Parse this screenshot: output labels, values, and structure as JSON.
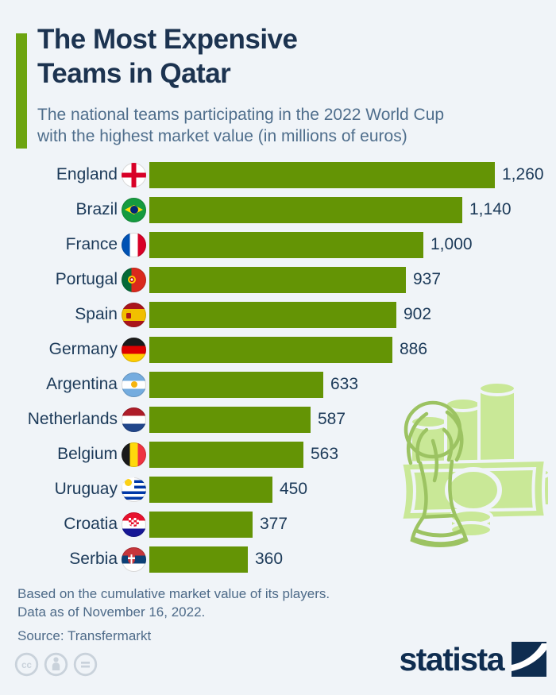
{
  "header": {
    "title": "The Most Expensive Teams in Qatar",
    "title_lines": [
      "The Most Expensive",
      "Teams in Qatar"
    ],
    "subtitle_lines": [
      "The national teams participating in the 2022 World Cup",
      "with the highest market value (in millions of euros)"
    ]
  },
  "chart_data": {
    "type": "bar",
    "orientation": "horizontal",
    "title": "The Most Expensive Teams in Qatar",
    "unit": "millions of euros",
    "value_axis_max": 1260,
    "grid": false,
    "legend": false,
    "categories": [
      "England",
      "Brazil",
      "France",
      "Portugal",
      "Spain",
      "Germany",
      "Argentina",
      "Netherlands",
      "Belgium",
      "Uruguay",
      "Croatia",
      "Serbia"
    ],
    "values": [
      1260,
      1140,
      1000,
      937,
      902,
      886,
      633,
      587,
      563,
      450,
      377,
      360
    ],
    "rows": [
      {
        "label": "England",
        "flag": "england",
        "value": 1260,
        "value_label": "1,260"
      },
      {
        "label": "Brazil",
        "flag": "brazil",
        "value": 1140,
        "value_label": "1,140"
      },
      {
        "label": "France",
        "flag": "france",
        "value": 1000,
        "value_label": "1,000"
      },
      {
        "label": "Portugal",
        "flag": "portugal",
        "value": 937,
        "value_label": "937"
      },
      {
        "label": "Spain",
        "flag": "spain",
        "value": 902,
        "value_label": "902"
      },
      {
        "label": "Germany",
        "flag": "germany",
        "value": 886,
        "value_label": "886"
      },
      {
        "label": "Argentina",
        "flag": "argentina",
        "value": 633,
        "value_label": "633"
      },
      {
        "label": "Netherlands",
        "flag": "netherlands",
        "value": 587,
        "value_label": "587"
      },
      {
        "label": "Belgium",
        "flag": "belgium",
        "value": 563,
        "value_label": "563"
      },
      {
        "label": "Uruguay",
        "flag": "uruguay",
        "value": 450,
        "value_label": "450"
      },
      {
        "label": "Croatia",
        "flag": "croatia",
        "value": 377,
        "value_label": "377"
      },
      {
        "label": "Serbia",
        "flag": "serbia",
        "value": 360,
        "value_label": "360"
      }
    ]
  },
  "footer": {
    "note_lines": [
      "Based on the cumulative market value of its players.",
      "Data as of November 16, 2022."
    ],
    "source": "Source: Transfermarkt",
    "brand": "statista",
    "license_icons": [
      "cc-icon",
      "cc-attribution-icon",
      "cc-nd-icon"
    ]
  },
  "colors": {
    "background": "#f0f4f8",
    "bar_green": "#649405",
    "accent_green": "#6da410",
    "title_navy": "#1c3350",
    "subtitle_gray_blue": "#4f6e8c",
    "footer_text": "#4d6a88",
    "brand_navy": "#0f2d50",
    "license_gray": "#c9d2db",
    "illustration_light_green": "#c9e897",
    "illustration_mid_green": "#9cc362"
  }
}
